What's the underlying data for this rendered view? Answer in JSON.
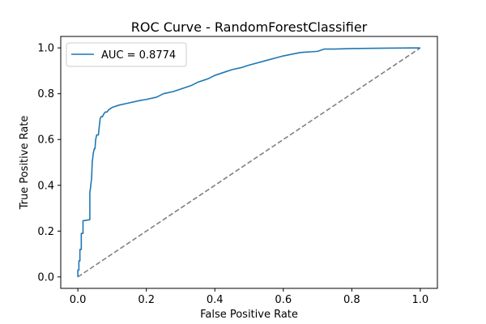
{
  "chart_data": {
    "type": "line",
    "title": "ROC Curve - RandomForestClassifier",
    "xlabel": "False Positive Rate",
    "ylabel": "True Positive Rate",
    "xlim": [
      -0.05,
      1.05
    ],
    "ylim": [
      -0.05,
      1.05
    ],
    "xticks": [
      0.0,
      0.2,
      0.4,
      0.6,
      0.8,
      1.0
    ],
    "yticks": [
      0.0,
      0.2,
      0.4,
      0.6,
      0.8,
      1.0
    ],
    "tick_labels_x": [
      "0.0",
      "0.2",
      "0.4",
      "0.6",
      "0.8",
      "1.0"
    ],
    "tick_labels_y": [
      "0.0",
      "0.2",
      "0.4",
      "0.6",
      "0.8",
      "1.0"
    ],
    "grid": false,
    "legend_position": "top-left",
    "series": [
      {
        "name": "AUC = 0.8774",
        "color": "#1f77b4",
        "style": "solid",
        "x": [
          0.0,
          0.0,
          0.003,
          0.003,
          0.006,
          0.006,
          0.01,
          0.01,
          0.015,
          0.015,
          0.035,
          0.035,
          0.037,
          0.04,
          0.042,
          0.045,
          0.048,
          0.05,
          0.052,
          0.055,
          0.06,
          0.062,
          0.065,
          0.068,
          0.072,
          0.075,
          0.08,
          0.085,
          0.09,
          0.1,
          0.12,
          0.15,
          0.18,
          0.2,
          0.23,
          0.25,
          0.28,
          0.3,
          0.33,
          0.35,
          0.38,
          0.4,
          0.43,
          0.45,
          0.48,
          0.5,
          0.55,
          0.6,
          0.65,
          0.7,
          0.72,
          0.75,
          0.8,
          0.9,
          1.0
        ],
        "y": [
          0.0,
          0.03,
          0.03,
          0.07,
          0.07,
          0.12,
          0.12,
          0.19,
          0.19,
          0.245,
          0.25,
          0.37,
          0.39,
          0.43,
          0.5,
          0.54,
          0.56,
          0.56,
          0.6,
          0.62,
          0.62,
          0.65,
          0.69,
          0.7,
          0.7,
          0.71,
          0.72,
          0.72,
          0.73,
          0.74,
          0.75,
          0.76,
          0.77,
          0.775,
          0.785,
          0.8,
          0.81,
          0.82,
          0.835,
          0.85,
          0.865,
          0.88,
          0.895,
          0.905,
          0.915,
          0.925,
          0.945,
          0.965,
          0.98,
          0.985,
          0.995,
          0.995,
          0.997,
          0.999,
          1.0
        ]
      },
      {
        "name": "",
        "color": "#808080",
        "style": "dashed",
        "x": [
          0.0,
          1.0
        ],
        "y": [
          0.0,
          1.0
        ]
      }
    ]
  }
}
